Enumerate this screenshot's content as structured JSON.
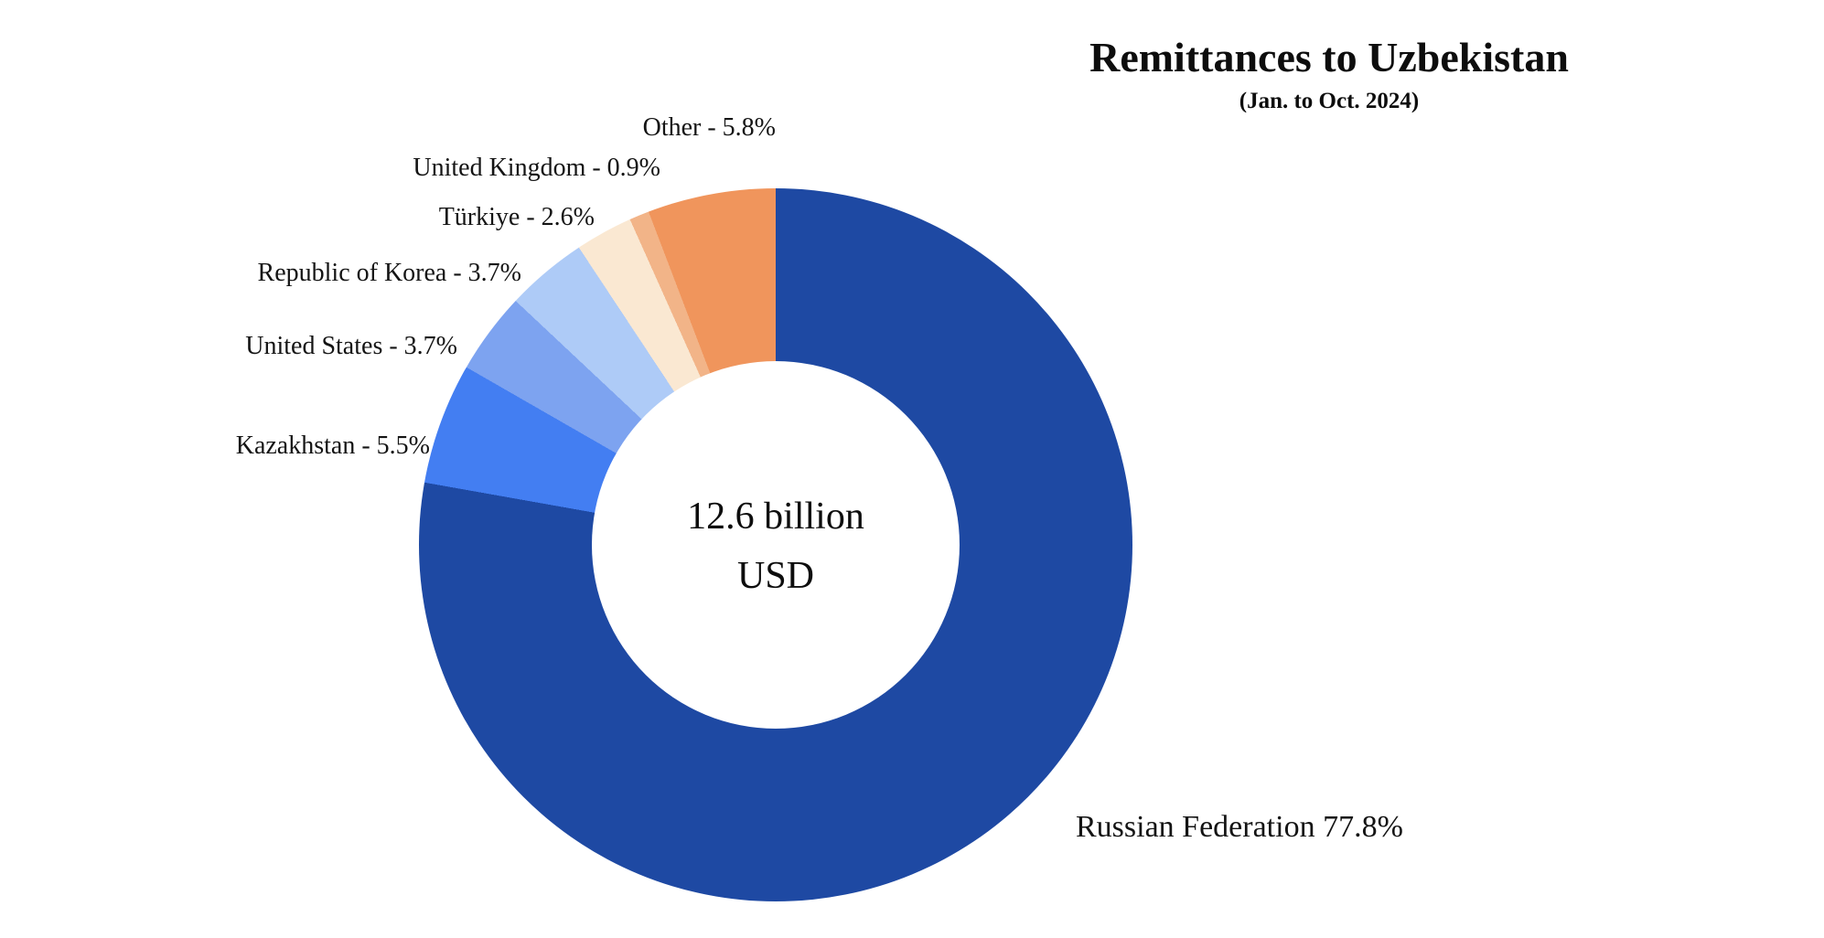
{
  "chart_data": {
    "type": "pie",
    "variant": "donut",
    "title": "Remittances to Uzbekistan",
    "subtitle": "(Jan. to Oct. 2024)",
    "center_label": {
      "line1": "12.6 billion",
      "line2": "USD"
    },
    "start_angle_deg": 0,
    "direction": "clockwise",
    "donut_hole_ratio": 0.51,
    "slices": [
      {
        "name": "Russian Federation",
        "value": 77.8,
        "color": "#1e49a3",
        "label_text": "Russian Federation 77.8%"
      },
      {
        "name": "Kazakhstan",
        "value": 5.5,
        "color": "#437ef2",
        "label_text": "Kazakhstan - 5.5%"
      },
      {
        "name": "United States",
        "value": 3.7,
        "color": "#7da3f0",
        "label_text": "United States - 3.7%"
      },
      {
        "name": "Republic of Korea",
        "value": 3.7,
        "color": "#aecbf7",
        "label_text": "Republic of Korea - 3.7%"
      },
      {
        "name": "Türkiye",
        "value": 2.6,
        "color": "#fae8d2",
        "label_text": "Türkiye - 2.6%"
      },
      {
        "name": "United Kingdom",
        "value": 0.9,
        "color": "#f2b488",
        "label_text": "United Kingdom - 0.9%"
      },
      {
        "name": "Other",
        "value": 5.8,
        "color": "#f0955c",
        "label_text": "Other - 5.8%"
      }
    ]
  }
}
